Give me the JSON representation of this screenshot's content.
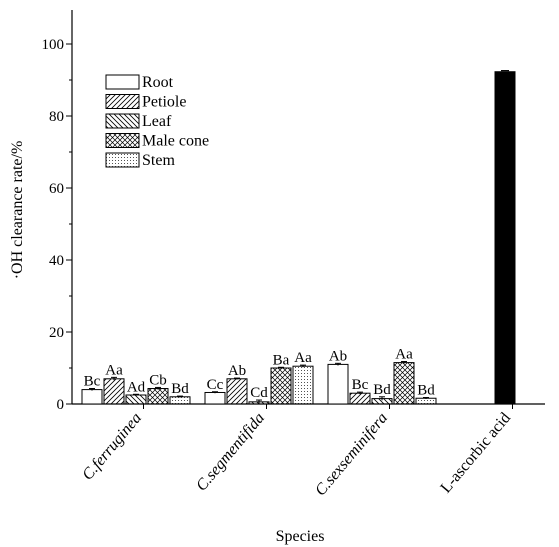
{
  "chart_data": {
    "type": "bar",
    "ylabel": "·OH clearance rate/%",
    "xlabel": "Species",
    "ylim": [
      0,
      110
    ],
    "yticks": [
      0,
      20,
      40,
      60,
      80,
      100
    ],
    "categories": [
      "C. ferruginea",
      "C. segmentifida",
      "C. sexseminifera",
      "L-ascorbic acid"
    ],
    "category_tick_labels": [
      "C.ferruginea",
      "C.segmentifida",
      "C.sexseminifera",
      "L-ascorbic acid"
    ],
    "series": [
      {
        "name": "Root",
        "pattern": "none",
        "values": [
          4.0,
          3.2,
          11.0,
          null
        ],
        "errors": [
          0.3,
          0.2,
          0.3,
          null
        ],
        "labels": [
          "Bc",
          "Cc",
          "Ab",
          null
        ]
      },
      {
        "name": "Petiole",
        "pattern": "diag-up",
        "values": [
          7.0,
          7.0,
          3.0,
          null
        ],
        "errors": [
          0.4,
          0.2,
          0.3,
          null
        ],
        "labels": [
          "Aa",
          "Ab",
          "Bc",
          null
        ]
      },
      {
        "name": "Leaf",
        "pattern": "diag-down",
        "values": [
          2.5,
          0.6,
          1.5,
          null
        ],
        "errors": [
          0.2,
          0.5,
          0.5,
          null
        ],
        "labels": [
          "Ad",
          "Cd",
          "Bd",
          null
        ]
      },
      {
        "name": "Male cone",
        "pattern": "crosshatch",
        "values": [
          4.3,
          10.0,
          11.5,
          null
        ],
        "errors": [
          0.3,
          0.2,
          0.3,
          null
        ],
        "labels": [
          "Cb",
          "Ba",
          "Aa",
          null
        ]
      },
      {
        "name": "Stem",
        "pattern": "dots",
        "values": [
          2.0,
          10.5,
          1.6,
          null
        ],
        "errors": [
          0.2,
          0.3,
          0.2,
          null
        ],
        "labels": [
          "Bd",
          "Aa",
          "Bd",
          null
        ]
      }
    ],
    "reference": {
      "category": "L-ascorbic acid",
      "value": 92.3,
      "error": 0.3,
      "color": "#000000"
    },
    "legend": {
      "position": "top-left",
      "columns": 1
    },
    "grid": false
  }
}
